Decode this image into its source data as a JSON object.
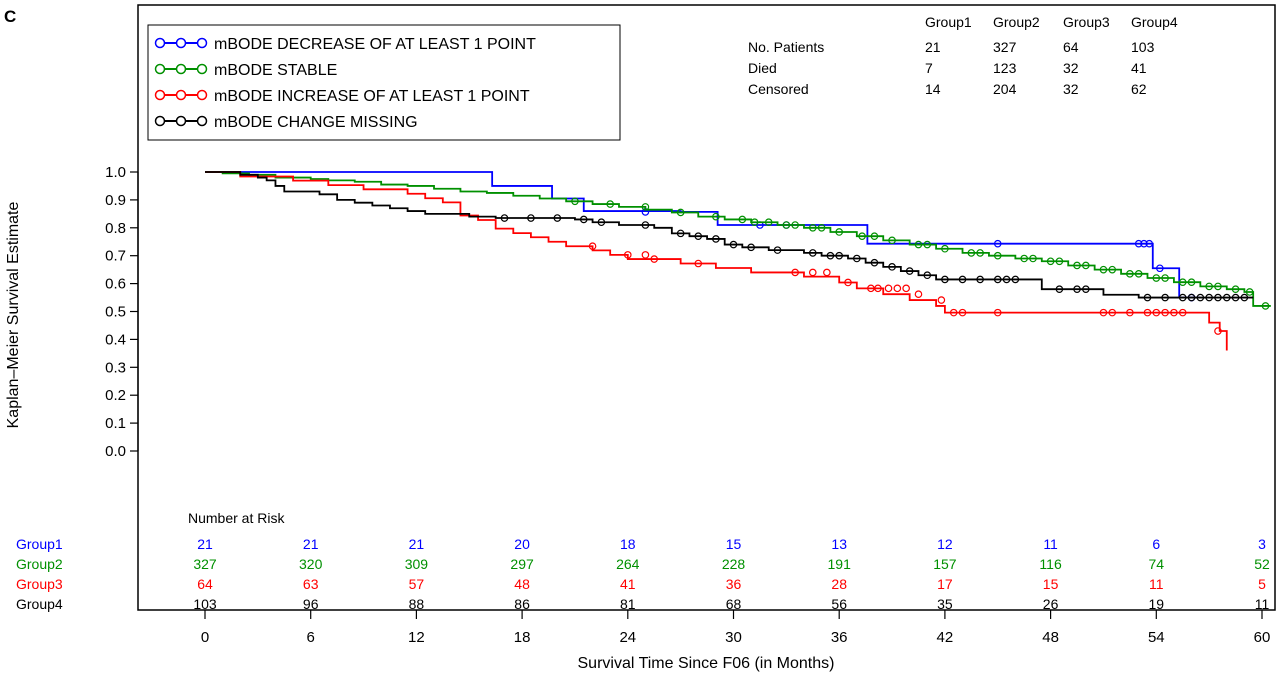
{
  "panel_label": "C",
  "chart_data": {
    "type": "line",
    "title": "",
    "xlabel": "Survival Time Since F06 (in Months)",
    "ylabel": "Kaplan–Meier Survival Estimate",
    "xlim": [
      0,
      60
    ],
    "ylim": [
      0,
      1
    ],
    "x_ticks": [
      "0",
      "6",
      "12",
      "18",
      "24",
      "30",
      "36",
      "42",
      "48",
      "54",
      "60"
    ],
    "y_ticks": [
      "0.0",
      "0.1",
      "0.2",
      "0.3",
      "0.4",
      "0.5",
      "0.6",
      "0.7",
      "0.8",
      "0.9",
      "1.0"
    ],
    "legend_position": "top-left",
    "legend": [
      {
        "label": "mBODE DECREASE OF AT LEAST 1 POINT",
        "color": "#0000ff"
      },
      {
        "label": "mBODE STABLE",
        "color": "#009000"
      },
      {
        "label": "mBODE INCREASE OF AT LEAST 1 POINT",
        "color": "#ff0000"
      },
      {
        "label": "mBODE CHANGE MISSING",
        "color": "#000000"
      }
    ],
    "summary_table": {
      "columns": [
        "Group1",
        "Group2",
        "Group3",
        "Group4"
      ],
      "rows": [
        {
          "label": "No. Patients",
          "values": [
            "21",
            "327",
            "64",
            "103"
          ]
        },
        {
          "label": "Died",
          "values": [
            "7",
            "123",
            "32",
            "41"
          ]
        },
        {
          "label": "Censored",
          "values": [
            "14",
            "204",
            "32",
            "62"
          ]
        }
      ]
    },
    "risk_table": {
      "title": "Number at Risk",
      "rows": [
        {
          "label": "Group1",
          "color": "#0000ff",
          "values": [
            "21",
            "21",
            "21",
            "20",
            "18",
            "15",
            "13",
            "12",
            "11",
            "6",
            "3"
          ]
        },
        {
          "label": "Group2",
          "color": "#009000",
          "values": [
            "327",
            "320",
            "309",
            "297",
            "264",
            "228",
            "191",
            "157",
            "116",
            "74",
            "52"
          ]
        },
        {
          "label": "Group3",
          "color": "#ff0000",
          "values": [
            "64",
            "63",
            "57",
            "48",
            "41",
            "36",
            "28",
            "17",
            "15",
            "11",
            "5"
          ]
        },
        {
          "label": "Group4",
          "color": "#000000",
          "values": [
            "103",
            "96",
            "88",
            "86",
            "81",
            "68",
            "56",
            "35",
            "26",
            "19",
            "11"
          ]
        }
      ]
    },
    "series": [
      {
        "color": "#0000ff",
        "steps": [
          [
            0,
            1.0
          ],
          [
            16.3,
            0.95
          ],
          [
            19.7,
            0.905
          ],
          [
            21.5,
            0.86
          ],
          [
            27,
            0.857
          ],
          [
            29.1,
            0.81
          ],
          [
            37.6,
            0.743
          ],
          [
            53.8,
            0.655
          ],
          [
            55.3,
            0.55
          ]
        ],
        "end": 56.5,
        "censored": [
          [
            25,
            0.857
          ],
          [
            31.5,
            0.81
          ],
          [
            33,
            0.81
          ],
          [
            45,
            0.743
          ],
          [
            53,
            0.743
          ],
          [
            53.3,
            0.743
          ],
          [
            53.6,
            0.743
          ],
          [
            54.2,
            0.655
          ],
          [
            56,
            0.55
          ]
        ]
      },
      {
        "color": "#009000",
        "steps": [
          [
            0,
            1.0
          ],
          [
            1,
            0.995
          ],
          [
            2.5,
            0.99
          ],
          [
            4,
            0.98
          ],
          [
            6,
            0.975
          ],
          [
            7,
            0.97
          ],
          [
            8.5,
            0.965
          ],
          [
            10,
            0.955
          ],
          [
            11.5,
            0.95
          ],
          [
            13,
            0.94
          ],
          [
            14.5,
            0.93
          ],
          [
            16,
            0.925
          ],
          [
            17.5,
            0.915
          ],
          [
            19,
            0.905
          ],
          [
            20.5,
            0.895
          ],
          [
            22,
            0.885
          ],
          [
            23.5,
            0.875
          ],
          [
            25,
            0.865
          ],
          [
            26.5,
            0.855
          ],
          [
            28,
            0.84
          ],
          [
            29.5,
            0.83
          ],
          [
            31,
            0.82
          ],
          [
            32.5,
            0.81
          ],
          [
            34,
            0.8
          ],
          [
            35.5,
            0.785
          ],
          [
            37,
            0.77
          ],
          [
            38.5,
            0.755
          ],
          [
            40,
            0.74
          ],
          [
            41.5,
            0.725
          ],
          [
            43,
            0.71
          ],
          [
            44.5,
            0.7
          ],
          [
            46,
            0.69
          ],
          [
            47.5,
            0.68
          ],
          [
            49,
            0.665
          ],
          [
            50.5,
            0.65
          ],
          [
            52,
            0.635
          ],
          [
            53.5,
            0.62
          ],
          [
            55,
            0.605
          ],
          [
            56.5,
            0.59
          ],
          [
            58,
            0.58
          ],
          [
            59,
            0.57
          ],
          [
            59.5,
            0.52
          ]
        ],
        "end": 60.5,
        "censored": [
          [
            21,
            0.895
          ],
          [
            23,
            0.885
          ],
          [
            25,
            0.875
          ],
          [
            27,
            0.855
          ],
          [
            29,
            0.84
          ],
          [
            30.5,
            0.83
          ],
          [
            31.2,
            0.82
          ],
          [
            32,
            0.82
          ],
          [
            33,
            0.81
          ],
          [
            33.5,
            0.81
          ],
          [
            34.5,
            0.8
          ],
          [
            35,
            0.8
          ],
          [
            36,
            0.785
          ],
          [
            37.3,
            0.77
          ],
          [
            38,
            0.77
          ],
          [
            39,
            0.755
          ],
          [
            40.5,
            0.74
          ],
          [
            41,
            0.74
          ],
          [
            42,
            0.725
          ],
          [
            43.5,
            0.71
          ],
          [
            44,
            0.71
          ],
          [
            45,
            0.7
          ],
          [
            46.5,
            0.69
          ],
          [
            47,
            0.69
          ],
          [
            48,
            0.68
          ],
          [
            48.5,
            0.68
          ],
          [
            49.5,
            0.665
          ],
          [
            50,
            0.665
          ],
          [
            51,
            0.65
          ],
          [
            51.5,
            0.65
          ],
          [
            52.5,
            0.635
          ],
          [
            53,
            0.635
          ],
          [
            54,
            0.62
          ],
          [
            54.5,
            0.62
          ],
          [
            55.5,
            0.605
          ],
          [
            56,
            0.605
          ],
          [
            57,
            0.59
          ],
          [
            57.5,
            0.59
          ],
          [
            58.5,
            0.58
          ],
          [
            59.3,
            0.57
          ],
          [
            60.2,
            0.52
          ]
        ]
      },
      {
        "color": "#ff0000",
        "steps": [
          [
            0,
            1.0
          ],
          [
            2,
            0.984
          ],
          [
            5,
            0.969
          ],
          [
            7,
            0.953
          ],
          [
            9,
            0.938
          ],
          [
            11.5,
            0.922
          ],
          [
            12.5,
            0.906
          ],
          [
            13.5,
            0.891
          ],
          [
            14.5,
            0.844
          ],
          [
            15.5,
            0.828
          ],
          [
            16.5,
            0.797
          ],
          [
            17.5,
            0.781
          ],
          [
            18.5,
            0.766
          ],
          [
            19.5,
            0.75
          ],
          [
            20.5,
            0.734
          ],
          [
            22,
            0.719
          ],
          [
            23,
            0.703
          ],
          [
            24,
            0.688
          ],
          [
            27,
            0.672
          ],
          [
            29,
            0.656
          ],
          [
            31,
            0.64
          ],
          [
            34,
            0.625
          ],
          [
            36,
            0.604
          ],
          [
            37,
            0.583
          ],
          [
            38.5,
            0.562
          ],
          [
            40,
            0.541
          ],
          [
            41.5,
            0.52
          ],
          [
            42,
            0.496
          ],
          [
            46,
            0.496
          ],
          [
            57,
            0.46
          ],
          [
            57.6,
            0.43
          ],
          [
            58,
            0.36
          ]
        ],
        "end": 58,
        "censored": [
          [
            22,
            0.734
          ],
          [
            24,
            0.703
          ],
          [
            25,
            0.703
          ],
          [
            25.5,
            0.688
          ],
          [
            28,
            0.672
          ],
          [
            33.5,
            0.64
          ],
          [
            34.5,
            0.64
          ],
          [
            35.3,
            0.64
          ],
          [
            36.5,
            0.604
          ],
          [
            37.8,
            0.583
          ],
          [
            38.2,
            0.583
          ],
          [
            38.8,
            0.583
          ],
          [
            39.3,
            0.583
          ],
          [
            39.8,
            0.583
          ],
          [
            40.5,
            0.562
          ],
          [
            41.8,
            0.541
          ],
          [
            42.5,
            0.496
          ],
          [
            43,
            0.496
          ],
          [
            45,
            0.496
          ],
          [
            51,
            0.496
          ],
          [
            51.5,
            0.496
          ],
          [
            52.5,
            0.496
          ],
          [
            53.5,
            0.496
          ],
          [
            54,
            0.496
          ],
          [
            54.5,
            0.496
          ],
          [
            55,
            0.496
          ],
          [
            55.5,
            0.496
          ],
          [
            57.5,
            0.43
          ]
        ]
      },
      {
        "color": "#000000",
        "steps": [
          [
            0,
            1.0
          ],
          [
            2,
            0.99
          ],
          [
            3,
            0.98
          ],
          [
            3.5,
            0.97
          ],
          [
            4,
            0.95
          ],
          [
            4.5,
            0.93
          ],
          [
            6.5,
            0.92
          ],
          [
            7.5,
            0.9
          ],
          [
            8.5,
            0.89
          ],
          [
            9.5,
            0.88
          ],
          [
            10.5,
            0.87
          ],
          [
            11.5,
            0.86
          ],
          [
            12.5,
            0.85
          ],
          [
            15,
            0.84
          ],
          [
            16.5,
            0.835
          ],
          [
            21,
            0.83
          ],
          [
            22,
            0.82
          ],
          [
            23.5,
            0.81
          ],
          [
            25.5,
            0.8
          ],
          [
            26.5,
            0.78
          ],
          [
            27.5,
            0.77
          ],
          [
            28.5,
            0.76
          ],
          [
            29.5,
            0.74
          ],
          [
            30.5,
            0.73
          ],
          [
            32,
            0.72
          ],
          [
            34,
            0.71
          ],
          [
            35,
            0.7
          ],
          [
            36.5,
            0.69
          ],
          [
            37.5,
            0.675
          ],
          [
            38.5,
            0.66
          ],
          [
            39.5,
            0.645
          ],
          [
            40.5,
            0.63
          ],
          [
            41.5,
            0.615
          ],
          [
            47.5,
            0.58
          ],
          [
            51,
            0.56
          ],
          [
            53,
            0.55
          ]
        ],
        "end": 59.5,
        "censored": [
          [
            17,
            0.835
          ],
          [
            18.5,
            0.835
          ],
          [
            20,
            0.835
          ],
          [
            21.5,
            0.83
          ],
          [
            22.5,
            0.82
          ],
          [
            25,
            0.81
          ],
          [
            27,
            0.78
          ],
          [
            28,
            0.77
          ],
          [
            29,
            0.76
          ],
          [
            30,
            0.74
          ],
          [
            31,
            0.73
          ],
          [
            32.5,
            0.72
          ],
          [
            34.5,
            0.71
          ],
          [
            35.5,
            0.7
          ],
          [
            36,
            0.7
          ],
          [
            37,
            0.69
          ],
          [
            38,
            0.675
          ],
          [
            39,
            0.66
          ],
          [
            40,
            0.645
          ],
          [
            41,
            0.63
          ],
          [
            42,
            0.615
          ],
          [
            43,
            0.615
          ],
          [
            44,
            0.615
          ],
          [
            45,
            0.615
          ],
          [
            45.5,
            0.615
          ],
          [
            46,
            0.615
          ],
          [
            48.5,
            0.58
          ],
          [
            49.5,
            0.58
          ],
          [
            50,
            0.58
          ],
          [
            53.5,
            0.55
          ],
          [
            54.5,
            0.55
          ],
          [
            55.5,
            0.55
          ],
          [
            56,
            0.55
          ],
          [
            56.5,
            0.55
          ],
          [
            57,
            0.55
          ],
          [
            57.5,
            0.55
          ],
          [
            58,
            0.55
          ],
          [
            58.5,
            0.55
          ],
          [
            59,
            0.55
          ]
        ]
      }
    ]
  }
}
